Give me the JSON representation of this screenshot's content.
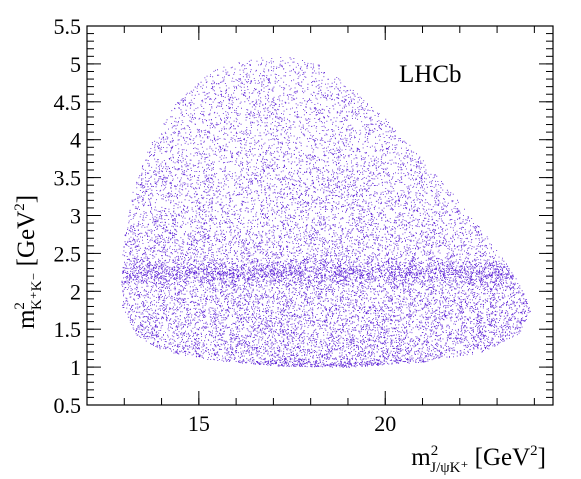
{
  "chart_data": {
    "type": "scatter",
    "title": "",
    "annotation": "LHCb",
    "xlabel": {
      "base": "m",
      "sup": "2",
      "sub": "J/ψK⁺",
      "unit_prefix": "[GeV",
      "unit_sup": "2",
      "unit_suffix": "]"
    },
    "ylabel": {
      "base": "m",
      "sup": "2",
      "sub": "K⁺K⁻",
      "unit_prefix": "[GeV",
      "unit_sup": "2",
      "unit_suffix": "]"
    },
    "xlim": [
      12.0,
      24.5
    ],
    "ylim": [
      0.5,
      5.5
    ],
    "xticks": [
      15,
      20
    ],
    "xtick_labels": [
      "15",
      "20"
    ],
    "yticks": [
      0.5,
      1,
      1.5,
      2,
      2.5,
      3,
      3.5,
      4,
      4.5,
      5,
      5.5
    ],
    "ytick_labels": [
      "0.5",
      "1",
      "1.5",
      "2",
      "2.5",
      "3",
      "3.5",
      "4",
      "4.5",
      "5",
      "5.5"
    ],
    "grid": false,
    "point_color": "#5b1fd6",
    "resonance_band_y": 2.25,
    "threshold_y": 1.02,
    "region_boundary": [
      {
        "x": 12.9,
        "y": 1.85
      },
      {
        "x": 12.95,
        "y": 2.6
      },
      {
        "x": 13.2,
        "y": 3.3
      },
      {
        "x": 13.7,
        "y": 3.95
      },
      {
        "x": 14.4,
        "y": 4.5
      },
      {
        "x": 15.3,
        "y": 4.9
      },
      {
        "x": 16.3,
        "y": 5.08
      },
      {
        "x": 17.3,
        "y": 5.12
      },
      {
        "x": 18.2,
        "y": 5.0
      },
      {
        "x": 19.1,
        "y": 4.68
      },
      {
        "x": 20.0,
        "y": 4.28
      },
      {
        "x": 21.0,
        "y": 3.75
      },
      {
        "x": 22.0,
        "y": 3.18
      },
      {
        "x": 22.9,
        "y": 2.62
      },
      {
        "x": 23.6,
        "y": 2.1
      },
      {
        "x": 23.9,
        "y": 1.75
      },
      {
        "x": 23.6,
        "y": 1.45
      },
      {
        "x": 22.6,
        "y": 1.2
      },
      {
        "x": 21.0,
        "y": 1.07
      },
      {
        "x": 19.0,
        "y": 1.0
      },
      {
        "x": 17.0,
        "y": 1.02
      },
      {
        "x": 15.3,
        "y": 1.1
      },
      {
        "x": 14.0,
        "y": 1.22
      },
      {
        "x": 13.3,
        "y": 1.42
      }
    ]
  }
}
